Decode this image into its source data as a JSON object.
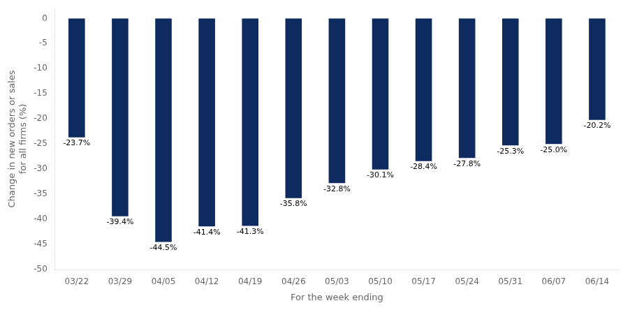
{
  "chart_data": {
    "type": "bar",
    "categories": [
      "03/22",
      "03/29",
      "04/05",
      "04/12",
      "04/19",
      "04/26",
      "05/03",
      "05/10",
      "05/17",
      "05/24",
      "05/31",
      "06/07",
      "06/14"
    ],
    "values": [
      -23.7,
      -39.4,
      -44.5,
      -41.4,
      -41.3,
      -35.8,
      -32.8,
      -30.1,
      -28.4,
      -27.8,
      -25.3,
      -25.0,
      -20.2
    ],
    "value_labels": [
      "-23.7%",
      "-39.4%",
      "-44.5%",
      "-41.4%",
      "-41.3%",
      "-35.8%",
      "-32.8%",
      "-30.1%",
      "-28.4%",
      "-27.8%",
      "-25.3%",
      "-25.0%",
      "-20.2%"
    ],
    "data_labels": true,
    "color": "#0d2b5e",
    "xlabel": "For the week ending",
    "ylabel": "Change in new orders or sales\nfor all firms (%)",
    "ylim": [
      -50,
      2
    ],
    "yticks": [
      0,
      -5,
      -10,
      -15,
      -20,
      -25,
      -30,
      -35,
      -40,
      -45,
      -50
    ],
    "grid": false
  }
}
